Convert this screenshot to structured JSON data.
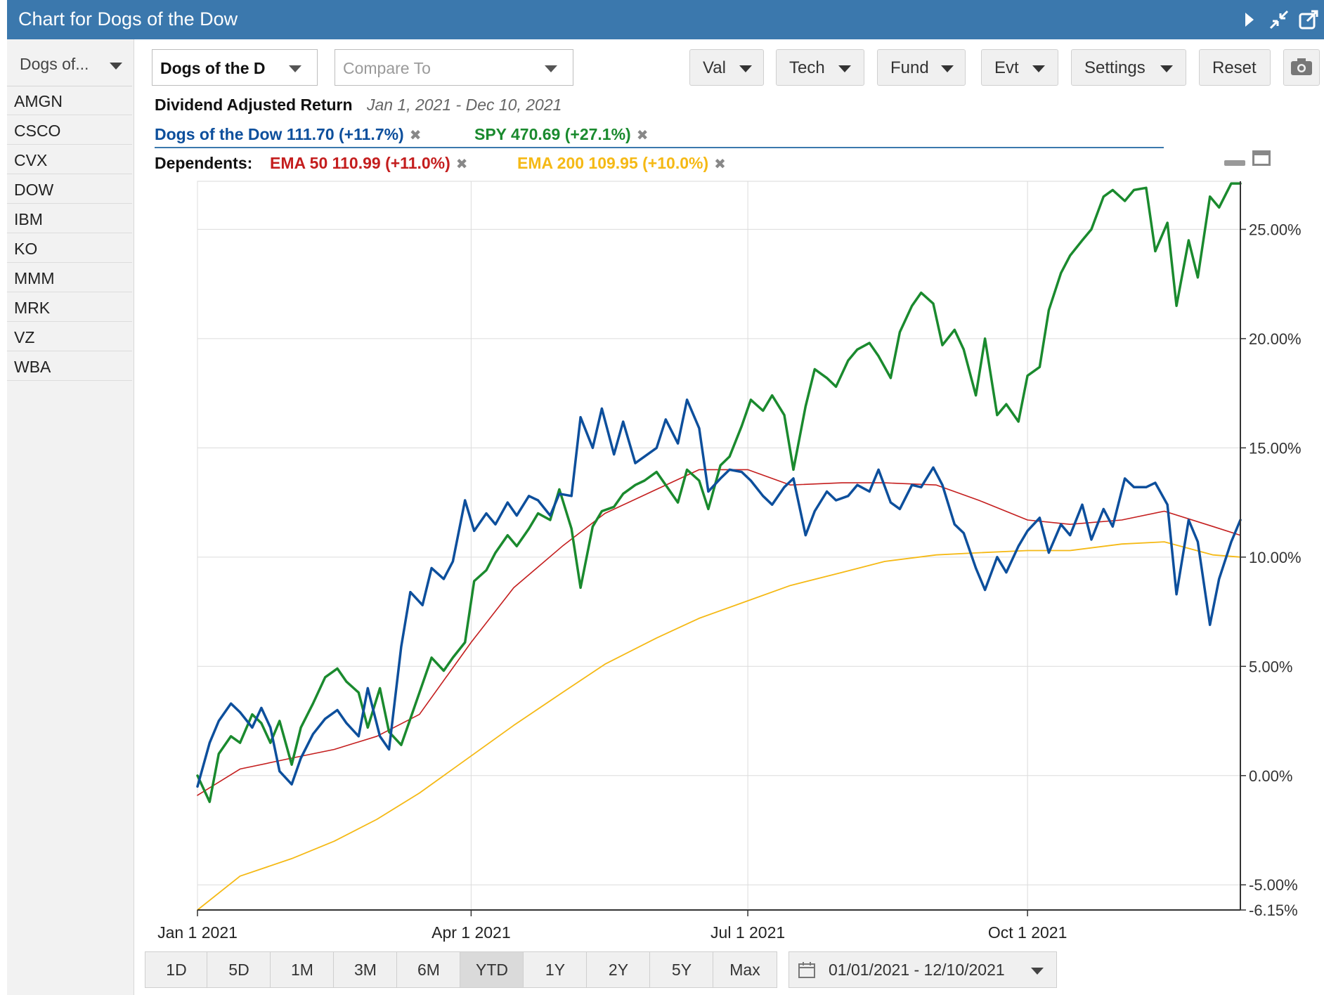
{
  "window": {
    "title": "Chart for Dogs of the Dow"
  },
  "sidebar": {
    "dropdown_label": "Dogs of...",
    "tickers": [
      "AMGN",
      "CSCO",
      "CVX",
      "DOW",
      "IBM",
      "KO",
      "MMM",
      "MRK",
      "VZ",
      "WBA"
    ]
  },
  "toolbar": {
    "symbol_value": "Dogs of the D",
    "compare_placeholder": "Compare To",
    "buttons": {
      "val": "Val",
      "tech": "Tech",
      "fund": "Fund",
      "evt": "Evt",
      "settings": "Settings",
      "reset": "Reset"
    }
  },
  "info": {
    "title": "Dividend Adjusted Return",
    "date_range": "Jan 1, 2021 - Dec 10, 2021",
    "dependents_label": "Dependents:"
  },
  "periods": [
    "1D",
    "5D",
    "1M",
    "3M",
    "6M",
    "YTD",
    "1Y",
    "2Y",
    "5Y",
    "Max"
  ],
  "active_period": "YTD",
  "date_range_value": "01/01/2021 - 12/10/2021",
  "colors": {
    "titlebar": "#3b78ad",
    "dogs": "#0d4f9c",
    "spy": "#1a8a2e",
    "ema50": "#c41e1e",
    "ema200": "#f5b915"
  },
  "chart_data": {
    "type": "line",
    "ylim": [
      -6.15,
      27.2
    ],
    "yticks": [
      25,
      20,
      15,
      10,
      5,
      0,
      -5,
      -6.15
    ],
    "ytick_labels": [
      "25.00%",
      "20.00%",
      "15.00%",
      "10.00%",
      "5.00%",
      "0.00%",
      "-5.00%",
      "-6.15%"
    ],
    "xlim": [
      "2021-01-01",
      "2021-12-10"
    ],
    "xticks": [
      {
        "date": "2021-01-01",
        "label": "Jan 1 2021"
      },
      {
        "date": "2021-04-01",
        "label": "Apr 1 2021"
      },
      {
        "date": "2021-07-01",
        "label": "Jul 1 2021"
      },
      {
        "date": "2021-10-01",
        "label": "Oct 1 2021"
      }
    ],
    "series": [
      {
        "name": "Dogs of the Dow",
        "legend": "Dogs of the Dow 111.70 (+11.7%)",
        "color": "#0d4f9c",
        "x": [
          "2021-01-01",
          "2021-01-05",
          "2021-01-08",
          "2021-01-12",
          "2021-01-15",
          "2021-01-19",
          "2021-01-22",
          "2021-01-25",
          "2021-01-28",
          "2021-02-01",
          "2021-02-04",
          "2021-02-08",
          "2021-02-12",
          "2021-02-16",
          "2021-02-19",
          "2021-02-23",
          "2021-02-26",
          "2021-03-02",
          "2021-03-05",
          "2021-03-09",
          "2021-03-12",
          "2021-03-16",
          "2021-03-19",
          "2021-03-23",
          "2021-03-26",
          "2021-03-30",
          "2021-04-02",
          "2021-04-06",
          "2021-04-09",
          "2021-04-13",
          "2021-04-16",
          "2021-04-20",
          "2021-04-23",
          "2021-04-27",
          "2021-04-30",
          "2021-05-04",
          "2021-05-07",
          "2021-05-11",
          "2021-05-14",
          "2021-05-18",
          "2021-05-21",
          "2021-05-25",
          "2021-05-28",
          "2021-06-01",
          "2021-06-04",
          "2021-06-08",
          "2021-06-11",
          "2021-06-15",
          "2021-06-18",
          "2021-06-22",
          "2021-06-25",
          "2021-06-29",
          "2021-07-02",
          "2021-07-06",
          "2021-07-09",
          "2021-07-13",
          "2021-07-16",
          "2021-07-20",
          "2021-07-23",
          "2021-07-27",
          "2021-07-30",
          "2021-08-03",
          "2021-08-06",
          "2021-08-10",
          "2021-08-13",
          "2021-08-17",
          "2021-08-20",
          "2021-08-24",
          "2021-08-27",
          "2021-08-31",
          "2021-09-03",
          "2021-09-07",
          "2021-09-10",
          "2021-09-14",
          "2021-09-17",
          "2021-09-21",
          "2021-09-24",
          "2021-09-28",
          "2021-10-01",
          "2021-10-05",
          "2021-10-08",
          "2021-10-12",
          "2021-10-15",
          "2021-10-19",
          "2021-10-22",
          "2021-10-26",
          "2021-10-29",
          "2021-11-02",
          "2021-11-05",
          "2021-11-09",
          "2021-11-12",
          "2021-11-16",
          "2021-11-19",
          "2021-11-23",
          "2021-11-26",
          "2021-11-30",
          "2021-12-03",
          "2021-12-07",
          "2021-12-10"
        ],
        "y": [
          -0.5,
          1.5,
          2.5,
          3.3,
          2.9,
          2.2,
          3.1,
          2.2,
          0.2,
          -0.4,
          0.8,
          1.9,
          2.6,
          3.0,
          2.4,
          1.8,
          4.0,
          1.8,
          1.2,
          5.9,
          8.4,
          7.8,
          9.5,
          9.0,
          9.8,
          12.6,
          11.2,
          12.0,
          11.5,
          12.5,
          11.9,
          12.8,
          12.6,
          11.9,
          12.9,
          12.8,
          16.4,
          15.0,
          16.8,
          14.7,
          16.2,
          14.3,
          14.6,
          15.0,
          16.3,
          15.2,
          17.2,
          15.9,
          13.0,
          13.6,
          14.0,
          13.9,
          13.5,
          12.8,
          12.4,
          13.2,
          13.6,
          11.0,
          12.1,
          13.0,
          12.6,
          12.8,
          13.3,
          13.0,
          14.0,
          12.5,
          12.2,
          13.3,
          13.2,
          14.1,
          13.3,
          11.5,
          11.1,
          9.5,
          8.5,
          10.0,
          9.3,
          10.5,
          11.2,
          11.8,
          10.2,
          11.5,
          11.0,
          12.4,
          10.8,
          12.2,
          11.4,
          13.6,
          13.2,
          13.2,
          13.4,
          12.4,
          8.3,
          11.7,
          10.7,
          6.9,
          9.0,
          10.7,
          11.7
        ]
      },
      {
        "name": "SPY",
        "legend": "SPY 470.69 (+27.1%)",
        "color": "#1a8a2e",
        "x": [
          "2021-01-01",
          "2021-01-05",
          "2021-01-08",
          "2021-01-12",
          "2021-01-15",
          "2021-01-19",
          "2021-01-22",
          "2021-01-25",
          "2021-01-28",
          "2021-02-01",
          "2021-02-04",
          "2021-02-08",
          "2021-02-12",
          "2021-02-16",
          "2021-02-19",
          "2021-02-23",
          "2021-02-26",
          "2021-03-02",
          "2021-03-05",
          "2021-03-09",
          "2021-03-12",
          "2021-03-16",
          "2021-03-19",
          "2021-03-23",
          "2021-03-26",
          "2021-03-30",
          "2021-04-02",
          "2021-04-06",
          "2021-04-09",
          "2021-04-13",
          "2021-04-16",
          "2021-04-20",
          "2021-04-23",
          "2021-04-27",
          "2021-04-30",
          "2021-05-04",
          "2021-05-07",
          "2021-05-11",
          "2021-05-14",
          "2021-05-18",
          "2021-05-21",
          "2021-05-25",
          "2021-05-28",
          "2021-06-01",
          "2021-06-04",
          "2021-06-08",
          "2021-06-11",
          "2021-06-15",
          "2021-06-18",
          "2021-06-22",
          "2021-06-25",
          "2021-06-29",
          "2021-07-02",
          "2021-07-06",
          "2021-07-09",
          "2021-07-13",
          "2021-07-16",
          "2021-07-20",
          "2021-07-23",
          "2021-07-27",
          "2021-07-30",
          "2021-08-03",
          "2021-08-06",
          "2021-08-10",
          "2021-08-13",
          "2021-08-17",
          "2021-08-20",
          "2021-08-24",
          "2021-08-27",
          "2021-08-31",
          "2021-09-03",
          "2021-09-07",
          "2021-09-10",
          "2021-09-14",
          "2021-09-17",
          "2021-09-21",
          "2021-09-24",
          "2021-09-28",
          "2021-10-01",
          "2021-10-05",
          "2021-10-08",
          "2021-10-12",
          "2021-10-15",
          "2021-10-19",
          "2021-10-22",
          "2021-10-26",
          "2021-10-29",
          "2021-11-02",
          "2021-11-05",
          "2021-11-09",
          "2021-11-12",
          "2021-11-16",
          "2021-11-19",
          "2021-11-23",
          "2021-11-26",
          "2021-11-30",
          "2021-12-03",
          "2021-12-07",
          "2021-12-10"
        ],
        "y": [
          0.0,
          -1.2,
          1.0,
          1.8,
          1.5,
          2.8,
          2.4,
          1.5,
          2.5,
          0.5,
          2.2,
          3.3,
          4.5,
          4.9,
          4.3,
          3.8,
          2.2,
          4.0,
          2.0,
          1.4,
          2.6,
          4.2,
          5.4,
          4.8,
          5.4,
          6.1,
          8.9,
          9.4,
          10.2,
          11.0,
          10.5,
          11.3,
          12.0,
          11.7,
          13.1,
          11.3,
          8.6,
          11.4,
          12.1,
          12.3,
          12.9,
          13.3,
          13.5,
          13.9,
          13.3,
          12.5,
          14.0,
          13.5,
          12.2,
          14.2,
          14.6,
          16.0,
          17.2,
          16.7,
          17.4,
          16.5,
          14.0,
          16.9,
          18.6,
          18.2,
          17.8,
          19.0,
          19.5,
          19.8,
          19.2,
          18.2,
          20.3,
          21.5,
          22.1,
          21.6,
          19.7,
          20.4,
          19.5,
          17.4,
          20.0,
          16.5,
          17.0,
          16.2,
          18.3,
          18.7,
          21.3,
          23.0,
          23.8,
          24.5,
          25.0,
          26.5,
          26.8,
          26.3,
          26.8,
          26.9,
          24.0,
          25.3,
          21.5,
          24.5,
          22.8,
          26.5,
          26.0,
          27.1,
          27.1
        ]
      },
      {
        "name": "EMA 50",
        "legend": "EMA 50 110.99 (+11.0%)",
        "color": "#c41e1e",
        "x": [
          "2021-01-01",
          "2021-01-15",
          "2021-02-01",
          "2021-02-15",
          "2021-03-01",
          "2021-03-15",
          "2021-04-01",
          "2021-04-15",
          "2021-05-01",
          "2021-05-15",
          "2021-06-01",
          "2021-06-15",
          "2021-07-01",
          "2021-07-15",
          "2021-08-01",
          "2021-08-15",
          "2021-09-01",
          "2021-09-15",
          "2021-10-01",
          "2021-10-15",
          "2021-11-01",
          "2021-11-15",
          "2021-12-01",
          "2021-12-10"
        ],
        "y": [
          -0.9,
          0.3,
          0.8,
          1.2,
          1.8,
          2.8,
          6.1,
          8.6,
          10.5,
          12.0,
          13.1,
          14.0,
          14.0,
          13.3,
          13.4,
          13.4,
          13.3,
          12.6,
          11.7,
          11.5,
          11.7,
          12.1,
          11.4,
          11.0
        ]
      },
      {
        "name": "EMA 200",
        "legend": "EMA 200 109.95 (+10.0%)",
        "color": "#f5b915",
        "x": [
          "2021-01-01",
          "2021-01-15",
          "2021-02-01",
          "2021-02-15",
          "2021-03-01",
          "2021-03-15",
          "2021-04-01",
          "2021-04-15",
          "2021-05-01",
          "2021-05-15",
          "2021-06-01",
          "2021-06-15",
          "2021-07-01",
          "2021-07-15",
          "2021-08-01",
          "2021-08-15",
          "2021-09-01",
          "2021-09-15",
          "2021-10-01",
          "2021-10-15",
          "2021-11-01",
          "2021-11-15",
          "2021-12-01",
          "2021-12-10"
        ],
        "y": [
          -6.15,
          -4.6,
          -3.8,
          -3.0,
          -2.0,
          -0.8,
          0.9,
          2.3,
          3.8,
          5.1,
          6.3,
          7.2,
          8.0,
          8.7,
          9.3,
          9.8,
          10.1,
          10.2,
          10.3,
          10.3,
          10.6,
          10.7,
          10.1,
          10.0
        ]
      }
    ]
  }
}
